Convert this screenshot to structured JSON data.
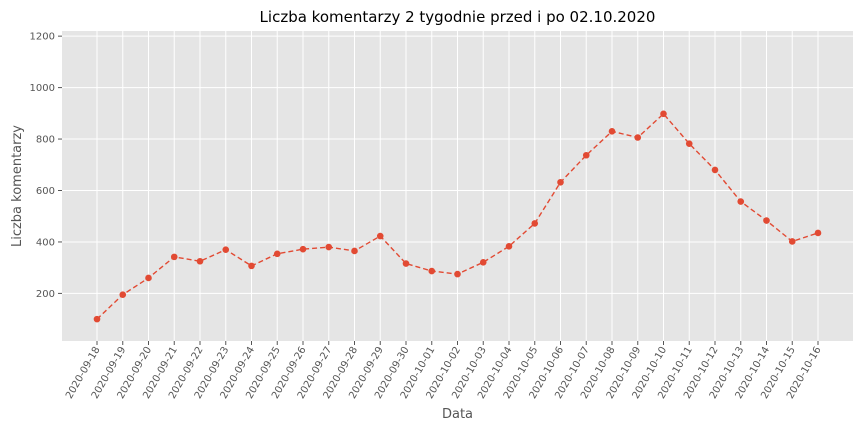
{
  "chart_data": {
    "type": "line",
    "title": "Liczba komentarzy 2 tygodnie przed i po 02.10.2020",
    "xlabel": "Data",
    "ylabel": "Liczba komentarzy",
    "categories": [
      "2020-09-18",
      "2020-09-19",
      "2020-09-20",
      "2020-09-21",
      "2020-09-22",
      "2020-09-23",
      "2020-09-24",
      "2020-09-25",
      "2020-09-26",
      "2020-09-27",
      "2020-09-28",
      "2020-09-29",
      "2020-09-30",
      "2020-10-01",
      "2020-10-02",
      "2020-10-03",
      "2020-10-04",
      "2020-10-05",
      "2020-10-06",
      "2020-10-07",
      "2020-10-08",
      "2020-10-09",
      "2020-10-10",
      "2020-10-11",
      "2020-10-12",
      "2020-10-13",
      "2020-10-14",
      "2020-10-15",
      "2020-10-16"
    ],
    "series": [
      {
        "values": [
          100,
          195,
          260,
          342,
          325,
          370,
          307,
          354,
          372,
          380,
          365,
          423,
          316,
          287,
          275,
          321,
          383,
          472,
          632,
          737,
          830,
          806,
          898,
          782,
          680,
          557,
          483,
          402,
          435
        ]
      }
    ],
    "yticks": [
      200,
      400,
      600,
      800,
      1000,
      1200
    ],
    "ylim": [
      15,
      1220
    ],
    "grid": true,
    "line_style": "dashed",
    "marker": "circle",
    "colors": {
      "series": "#e24a33",
      "plot_background": "#e5e5e5",
      "grid": "#ffffff"
    }
  }
}
